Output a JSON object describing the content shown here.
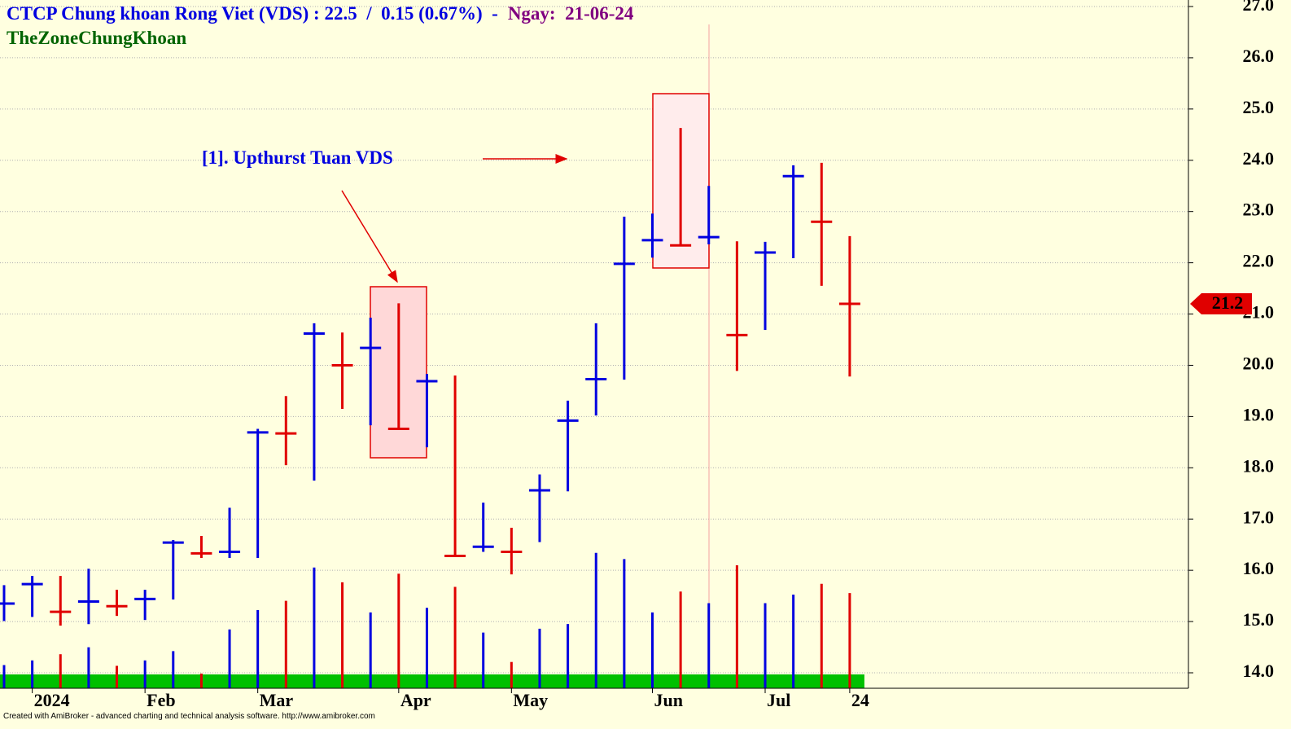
{
  "chart_data": {
    "type": "hlc",
    "title": "CTCP Chung khoan Rong Viet (VDS) : 22.5  /  0.15 (0.67%)  -",
    "date_label": "Ngay:  21-06-24",
    "subtitle": "TheZoneChungKhoan",
    "annotation": "[1]. Upthurst Tuan VDS",
    "footer": "Created with AmiBroker - advanced charting and technical analysis software. http://www.amibroker.com",
    "last_price": 21.2,
    "categories": [
      null,
      "2024",
      null,
      null,
      null,
      "Feb",
      null,
      null,
      null,
      "Mar",
      null,
      null,
      null,
      null,
      "Apr",
      null,
      null,
      null,
      "May",
      null,
      null,
      null,
      null,
      "Jun",
      null,
      null,
      null,
      "Jul",
      null,
      null,
      "24"
    ],
    "high": [
      15.71,
      15.89,
      15.89,
      16.03,
      15.62,
      15.62,
      16.59,
      16.67,
      17.22,
      18.76,
      19.4,
      20.82,
      20.64,
      20.93,
      21.21,
      19.83,
      19.8,
      17.32,
      16.83,
      17.87,
      19.31,
      20.82,
      22.9,
      22.96,
      24.63,
      23.5,
      22.42,
      22.41,
      23.9,
      23.95,
      22.52
    ],
    "low": [
      15.01,
      15.09,
      14.92,
      14.95,
      15.11,
      15.03,
      15.43,
      16.24,
      16.24,
      16.24,
      18.05,
      17.75,
      19.15,
      18.83,
      18.76,
      18.4,
      16.28,
      16.36,
      15.92,
      16.55,
      17.54,
      19.02,
      19.72,
      22.1,
      22.34,
      22.36,
      19.89,
      20.69,
      22.09,
      21.55,
      19.78
    ],
    "close": [
      15.35,
      15.73,
      15.19,
      15.39,
      15.3,
      15.44,
      16.54,
      16.33,
      16.36,
      18.69,
      18.67,
      20.62,
      20.0,
      20.34,
      18.76,
      19.69,
      16.28,
      16.46,
      16.36,
      17.56,
      18.92,
      19.73,
      21.98,
      22.44,
      22.34,
      22.5,
      20.59,
      22.2,
      23.69,
      22.8,
      21.2
    ],
    "volume": [
      30,
      36,
      44,
      53,
      29,
      36,
      48,
      19,
      76,
      101,
      113,
      156,
      137,
      98,
      148,
      104,
      131,
      72,
      34,
      77,
      83,
      175,
      167,
      98,
      125,
      110,
      159,
      110,
      121,
      135,
      123
    ],
    "colors": [
      "#0000e0",
      "#0000e0",
      "#e00000",
      "#0000e0",
      "#e00000",
      "#0000e0",
      "#0000e0",
      "#e00000",
      "#0000e0",
      "#0000e0",
      "#e00000",
      "#0000e0",
      "#e00000",
      "#0000e0",
      "#e00000",
      "#0000e0",
      "#e00000",
      "#0000e0",
      "#e00000",
      "#0000e0",
      "#0000e0",
      "#0000e0",
      "#0000e0",
      "#0000e0",
      "#e00000",
      "#0000e0",
      "#e00000",
      "#0000e0",
      "#0000e0",
      "#e00000",
      "#e00000"
    ],
    "ylim": [
      14,
      27
    ],
    "volume_lim": [
      0,
      200
    ],
    "yticks": [
      {
        "value": 14,
        "label": "14.0"
      },
      {
        "value": 15,
        "label": "15.0"
      },
      {
        "value": 16,
        "label": "16.0"
      },
      {
        "value": 17,
        "label": "17.0"
      },
      {
        "value": 18,
        "label": "18.0"
      },
      {
        "value": 19,
        "label": "19.0"
      },
      {
        "value": 20,
        "label": "20.0"
      },
      {
        "value": 21,
        "label": "21.0"
      },
      {
        "value": 22,
        "label": "22.0"
      },
      {
        "value": 23,
        "label": "23.0"
      },
      {
        "value": 24,
        "label": "24.0"
      },
      {
        "value": 25,
        "label": "25.0"
      },
      {
        "value": 26,
        "label": "26.0"
      },
      {
        "value": 27,
        "label": "27.0"
      }
    ],
    "grid": true
  }
}
